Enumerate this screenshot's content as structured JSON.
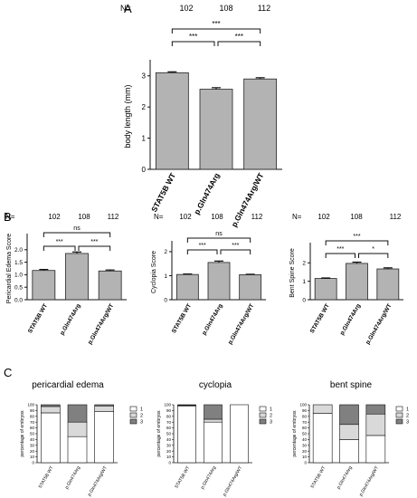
{
  "panel_labels": [
    "A",
    "B",
    "C"
  ],
  "n_prefix": "N=",
  "n_values": [
    "102",
    "108",
    "112"
  ],
  "colors": {
    "bar": "#b3b3b3",
    "bar_stroke": "#222222",
    "axis": "#111111",
    "stack_1": "#ffffff",
    "stack_2": "#d9d9d9",
    "stack_3": "#808080"
  },
  "chart_data": [
    {
      "id": "A",
      "type": "bar",
      "categories": [
        "STAT5B WT",
        "p.Gln474Arg",
        "p.Gln474Arg/WT"
      ],
      "values": [
        3.1,
        2.57,
        2.9
      ],
      "errors": [
        0.03,
        0.05,
        0.04
      ],
      "ylabel": "body length (mm)",
      "ylim": [
        0,
        3.4
      ],
      "yticks": [
        0,
        1,
        2,
        3
      ],
      "significance": [
        {
          "from": 0,
          "to": 1,
          "label": "***"
        },
        {
          "from": 1,
          "to": 2,
          "label": "***"
        },
        {
          "from": 0,
          "to": 2,
          "label": "***"
        }
      ]
    },
    {
      "id": "B1",
      "type": "bar",
      "categories": [
        "STAT5B WT",
        "p.Gln474Arg",
        "p.Gln474Arg/WT"
      ],
      "values": [
        1.17,
        1.85,
        1.15
      ],
      "errors": [
        0.04,
        0.06,
        0.04
      ],
      "ylabel": "Pericardial Edema Score",
      "ylim": [
        0,
        2.5
      ],
      "yticks": [
        0.0,
        0.5,
        1.0,
        1.5,
        2.0
      ],
      "significance": [
        {
          "from": 0,
          "to": 1,
          "label": "***"
        },
        {
          "from": 1,
          "to": 2,
          "label": "***"
        },
        {
          "from": 0,
          "to": 2,
          "label": "ns"
        }
      ]
    },
    {
      "id": "B2",
      "type": "bar",
      "categories": [
        "STAT5B WT",
        "p.Gln474Arg",
        "p.Gln474Arg/WT"
      ],
      "values": [
        1.05,
        1.55,
        1.04
      ],
      "errors": [
        0.02,
        0.06,
        0.02
      ],
      "ylabel": "Cyclopia Score",
      "ylim": [
        0,
        2.3
      ],
      "yticks": [
        0,
        1,
        2
      ],
      "significance": [
        {
          "from": 0,
          "to": 1,
          "label": "***"
        },
        {
          "from": 1,
          "to": 2,
          "label": "***"
        },
        {
          "from": 0,
          "to": 2,
          "label": "ns"
        }
      ]
    },
    {
      "id": "B3",
      "type": "bar",
      "categories": [
        "STAT5B WT",
        "p.Gln474Arg",
        "p.Gln474Arg/WT"
      ],
      "values": [
        1.15,
        1.97,
        1.67
      ],
      "errors": [
        0.03,
        0.07,
        0.06
      ],
      "ylabel": "Bent Spine Score",
      "ylim": [
        0,
        2.9
      ],
      "yticks": [
        0,
        1,
        2
      ],
      "significance": [
        {
          "from": 0,
          "to": 1,
          "label": "***"
        },
        {
          "from": 1,
          "to": 2,
          "label": "*"
        },
        {
          "from": 0,
          "to": 2,
          "label": "***"
        }
      ]
    },
    {
      "id": "C1",
      "type": "bar",
      "stacked": true,
      "title": "pericardial edema",
      "categories": [
        "STAT5B WT",
        "p.Gln474Arg",
        "p.Gln474Arg/WT"
      ],
      "ylabel": "percentage of embryos",
      "ylim": [
        0,
        100
      ],
      "yticks": [
        0,
        10,
        20,
        30,
        40,
        50,
        60,
        70,
        80,
        90,
        100
      ],
      "series": [
        {
          "name": "1",
          "values": [
            86,
            45,
            88
          ]
        },
        {
          "name": "2",
          "values": [
            11,
            25,
            10
          ]
        },
        {
          "name": "3",
          "values": [
            3,
            30,
            2
          ]
        }
      ]
    },
    {
      "id": "C2",
      "type": "bar",
      "stacked": true,
      "title": "cyclopia",
      "categories": [
        "STAT5B WT",
        "p.Gln474Arg",
        "p.Gln474Arg/WT"
      ],
      "ylabel": "percentage of embryos",
      "ylim": [
        0,
        100
      ],
      "yticks": [
        0,
        10,
        20,
        30,
        40,
        50,
        60,
        70,
        80,
        90,
        100
      ],
      "series": [
        {
          "name": "1",
          "values": [
            98,
            70,
            100
          ]
        },
        {
          "name": "2",
          "values": [
            1,
            5,
            0
          ]
        },
        {
          "name": "3",
          "values": [
            1,
            25,
            0
          ]
        }
      ]
    },
    {
      "id": "C3",
      "type": "bar",
      "stacked": true,
      "title": "bent spine",
      "categories": [
        "STAT5B WT",
        "p.Gln474Arg",
        "p.Gln474Arg/WT"
      ],
      "ylabel": "percentage of embryos",
      "ylim": [
        0,
        100
      ],
      "yticks": [
        0,
        10,
        20,
        30,
        40,
        50,
        60,
        70,
        80,
        90,
        100
      ],
      "series": [
        {
          "name": "1",
          "values": [
            85,
            40,
            47
          ]
        },
        {
          "name": "2",
          "values": [
            15,
            26,
            37
          ]
        },
        {
          "name": "3",
          "values": [
            0,
            34,
            16
          ]
        }
      ]
    }
  ]
}
